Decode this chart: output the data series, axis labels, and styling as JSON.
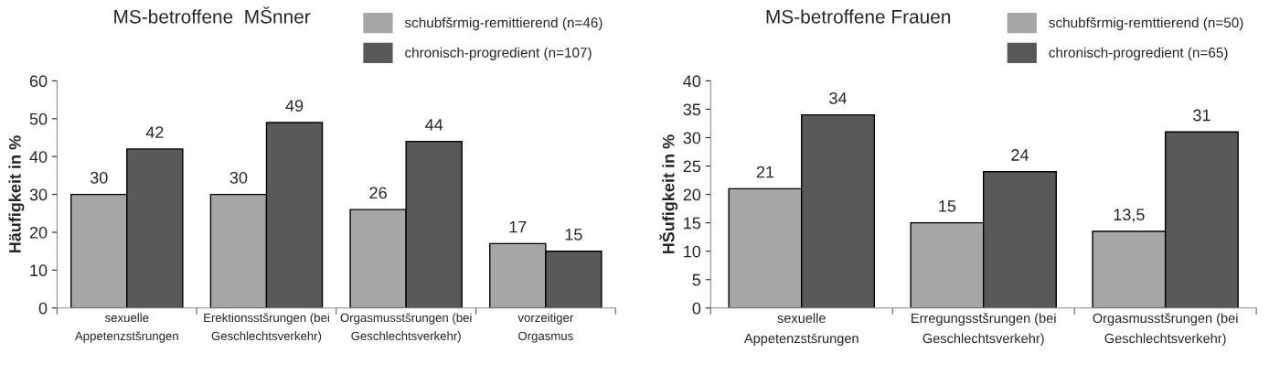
{
  "chart_data": [
    {
      "type": "bar",
      "title": "MS-betroffene  MŠnner",
      "ylabel": "Häufigkeit in %",
      "categories": [
        "sexuelle\nAppetenzstšrungen",
        "Erektionsstšrungen (bei\nGeschlechtsverkehr)",
        "Orgasmusstšrungen (bei\nGeschlechtsverkehr)",
        "vorzeitiger\nOrgasmus"
      ],
      "series": [
        {
          "name": "schubfšrmig-remittierend (n=46)",
          "color": "#a6a6a6",
          "values": [
            30,
            30,
            26,
            17
          ]
        },
        {
          "name": "chronisch-progredient (n=107)",
          "color": "#595959",
          "values": [
            42,
            49,
            44,
            15
          ]
        }
      ],
      "ylim": [
        0,
        60
      ],
      "yticks": [
        0,
        10,
        20,
        30,
        40,
        50,
        60
      ],
      "data_labels": true,
      "legend": "top right",
      "grid": false
    },
    {
      "type": "bar",
      "title": "MS-betroffene Frauen",
      "ylabel": "HŠufigkeit in %",
      "categories": [
        "sexuelle\nAppetenzstšrungen",
        "Erregungsstšrungen (bei\nGeschlechtsverkehr)",
        "Orgasmusstšrungen (bei\nGeschlechtsverkehr)"
      ],
      "series": [
        {
          "name": "schubfšrmig-remttierend (n=50)",
          "color": "#a6a6a6",
          "values": [
            21,
            15,
            13.5
          ],
          "value_labels": [
            "21",
            "15",
            "13,5"
          ]
        },
        {
          "name": "chronisch-progredient (n=65)",
          "color": "#595959",
          "values": [
            34,
            24,
            31
          ]
        }
      ],
      "ylim": [
        0,
        40
      ],
      "yticks": [
        0,
        5,
        10,
        15,
        20,
        25,
        30,
        35,
        40
      ],
      "data_labels": true,
      "legend": "top right",
      "grid": false
    }
  ]
}
